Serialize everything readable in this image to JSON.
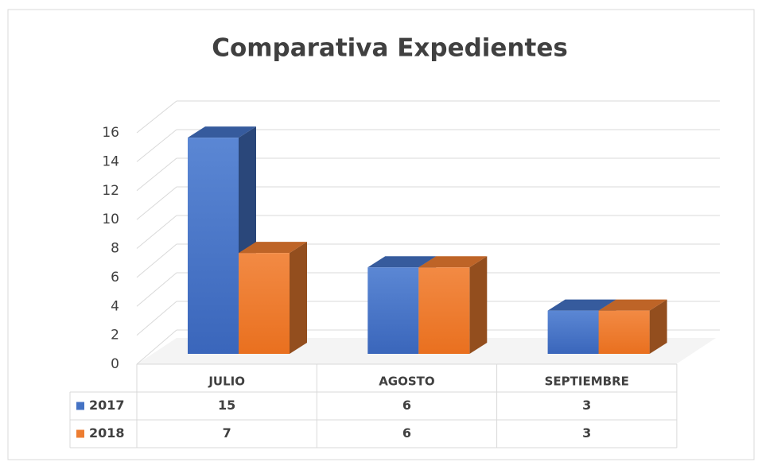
{
  "chart_data": {
    "type": "bar3d",
    "title": "Comparativa Expedientes",
    "categories": [
      "JULIO",
      "AGOSTO",
      "SEPTIEMBRE"
    ],
    "series": [
      {
        "name": "2017",
        "color": "#4472c4",
        "values": [
          15,
          6,
          3
        ]
      },
      {
        "name": "2018",
        "color": "#ed7d31",
        "values": [
          7,
          6,
          3
        ]
      }
    ],
    "ylim": [
      0,
      16
    ],
    "yticks": [
      0,
      2,
      4,
      6,
      8,
      10,
      12,
      14,
      16
    ],
    "grid": true,
    "data_table": true
  }
}
